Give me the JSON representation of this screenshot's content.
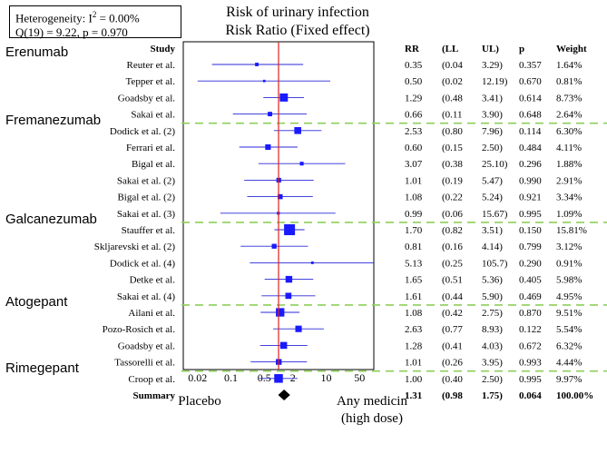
{
  "heterogeneity": {
    "line1_prefix": "Heterogeneity: I",
    "line1_sup": "2",
    "line1_suffix": " = 0.00%",
    "line2": "Q(19) = 9.22,  p = 0.970"
  },
  "footer": {
    "left": "Placebo",
    "right_line1": "Any medicin",
    "right_line2": "(high dose)"
  },
  "colors": {
    "marker": "#1a1aff",
    "ci_line": "#2a2ad8",
    "reference_line": "#e02020",
    "separator": "#8ecf5a",
    "summary": "#000000"
  },
  "chart_data": {
    "type": "forest",
    "title": "Risk of urinary infection",
    "subtitle": "Risk Ratio (Fixed effect)",
    "x_scale": "log",
    "xlim": [
      0.01,
      100
    ],
    "x_ticks": [
      {
        "value": 0.02,
        "label": "0.02"
      },
      {
        "value": 0.1,
        "label": "0.1"
      },
      {
        "value": 0.5,
        "label": "0.5"
      },
      {
        "value": 1,
        "label": "1"
      },
      {
        "value": 2,
        "label": "2"
      },
      {
        "value": 10,
        "label": "10"
      },
      {
        "value": 50,
        "label": "50"
      }
    ],
    "reference_value": 1,
    "column_headers": {
      "study": "Study",
      "rr": "RR",
      "ll": "(LL",
      "ul": "UL)",
      "p": "p",
      "weight": "Weight"
    },
    "groups": [
      "Erenumab",
      "Fremanezumab",
      "Galcanezumab",
      "Atogepant",
      "Rimegepant"
    ],
    "rows": [
      {
        "group": "Erenumab",
        "study": "Reuter et al.",
        "rr": 0.35,
        "ll": 0.04,
        "ul": 3.29,
        "rr_text": "0.35",
        "ll_text": "(0.04",
        "ul_text": "3.29)",
        "p_text": "0.357",
        "weight_text": "1.64%",
        "weight": 1.64
      },
      {
        "group": "Erenumab",
        "study": "Tepper et al.",
        "rr": 0.5,
        "ll": 0.02,
        "ul": 12.19,
        "rr_text": "0.50",
        "ll_text": "(0.02",
        "ul_text": "12.19)",
        "p_text": "0.670",
        "weight_text": "0.81%",
        "weight": 0.81
      },
      {
        "group": "Erenumab",
        "study": "Goadsby et al.",
        "rr": 1.29,
        "ll": 0.48,
        "ul": 3.41,
        "rr_text": "1.29",
        "ll_text": "(0.48",
        "ul_text": "3.41)",
        "p_text": "0.614",
        "weight_text": "8.73%",
        "weight": 8.73
      },
      {
        "group": "Erenumab",
        "study": "Sakai et al.",
        "rr": 0.66,
        "ll": 0.11,
        "ul": 3.9,
        "rr_text": "0.66",
        "ll_text": "(0.11",
        "ul_text": "3.90)",
        "p_text": "0.648",
        "weight_text": "2.64%",
        "weight": 2.64
      },
      {
        "group": "Fremanezumab",
        "study": "Dodick et al. (2)",
        "rr": 2.53,
        "ll": 0.8,
        "ul": 7.96,
        "rr_text": "2.53",
        "ll_text": "(0.80",
        "ul_text": "7.96)",
        "p_text": "0.114",
        "weight_text": "6.30%",
        "weight": 6.3
      },
      {
        "group": "Fremanezumab",
        "study": "Ferrari et al.",
        "rr": 0.6,
        "ll": 0.15,
        "ul": 2.5,
        "rr_text": "0.60",
        "ll_text": "(0.15",
        "ul_text": "2.50)",
        "p_text": "0.484",
        "weight_text": "4.11%",
        "weight": 4.11
      },
      {
        "group": "Fremanezumab",
        "study": "Bigal et al.",
        "rr": 3.07,
        "ll": 0.38,
        "ul": 25.1,
        "rr_text": "3.07",
        "ll_text": "(0.38",
        "ul_text": "25.10)",
        "p_text": "0.296",
        "weight_text": "1.88%",
        "weight": 1.88
      },
      {
        "group": "Fremanezumab",
        "study": "Sakai et al. (2)",
        "rr": 1.01,
        "ll": 0.19,
        "ul": 5.47,
        "rr_text": "1.01",
        "ll_text": "(0.19",
        "ul_text": "5.47)",
        "p_text": "0.990",
        "weight_text": "2.91%",
        "weight": 2.91
      },
      {
        "group": "Fremanezumab",
        "study": "Bigal et al. (2)",
        "rr": 1.08,
        "ll": 0.22,
        "ul": 5.24,
        "rr_text": "1.08",
        "ll_text": "(0.22",
        "ul_text": "5.24)",
        "p_text": "0.921",
        "weight_text": "3.34%",
        "weight": 3.34
      },
      {
        "group": "Fremanezumab",
        "study": "Sakai et al. (3)",
        "rr": 0.99,
        "ll": 0.06,
        "ul": 15.67,
        "rr_text": "0.99",
        "ll_text": "(0.06",
        "ul_text": "15.67)",
        "p_text": "0.995",
        "weight_text": "1.09%",
        "weight": 1.09
      },
      {
        "group": "Galcanezumab",
        "study": "Stauffer et al.",
        "rr": 1.7,
        "ll": 0.82,
        "ul": 3.51,
        "rr_text": "1.70",
        "ll_text": "(0.82",
        "ul_text": "3.51)",
        "p_text": "0.150",
        "weight_text": "15.81%",
        "weight": 15.81
      },
      {
        "group": "Galcanezumab",
        "study": "Skljarevski et al. (2)",
        "rr": 0.81,
        "ll": 0.16,
        "ul": 4.14,
        "rr_text": "0.81",
        "ll_text": "(0.16",
        "ul_text": "4.14)",
        "p_text": "0.799",
        "weight_text": "3.12%",
        "weight": 3.12
      },
      {
        "group": "Galcanezumab",
        "study": "Dodick et al. (4)",
        "rr": 5.13,
        "ll": 0.25,
        "ul": 105.7,
        "rr_text": "5.13",
        "ll_text": "(0.25",
        "ul_text": "105.7)",
        "p_text": "0.290",
        "weight_text": "0.91%",
        "weight": 0.91
      },
      {
        "group": "Galcanezumab",
        "study": "Detke et al.",
        "rr": 1.65,
        "ll": 0.51,
        "ul": 5.36,
        "rr_text": "1.65",
        "ll_text": "(0.51",
        "ul_text": "5.36)",
        "p_text": "0.405",
        "weight_text": "5.98%",
        "weight": 5.98
      },
      {
        "group": "Galcanezumab",
        "study": "Sakai et al. (4)",
        "rr": 1.61,
        "ll": 0.44,
        "ul": 5.9,
        "rr_text": "1.61",
        "ll_text": "(0.44",
        "ul_text": "5.90)",
        "p_text": "0.469",
        "weight_text": "4.95%",
        "weight": 4.95
      },
      {
        "group": "Atogepant",
        "study": "Ailani et al.",
        "rr": 1.08,
        "ll": 0.42,
        "ul": 2.75,
        "rr_text": "1.08",
        "ll_text": "(0.42",
        "ul_text": "2.75)",
        "p_text": "0.870",
        "weight_text": "9.51%",
        "weight": 9.51
      },
      {
        "group": "Atogepant",
        "study": "Pozo-Rosich et al.",
        "rr": 2.63,
        "ll": 0.77,
        "ul": 8.93,
        "rr_text": "2.63",
        "ll_text": "(0.77",
        "ul_text": "8.93)",
        "p_text": "0.122",
        "weight_text": "5.54%",
        "weight": 5.54
      },
      {
        "group": "Atogepant",
        "study": "Goadsby et al.",
        "rr": 1.28,
        "ll": 0.41,
        "ul": 4.03,
        "rr_text": "1.28",
        "ll_text": "(0.41",
        "ul_text": "4.03)",
        "p_text": "0.672",
        "weight_text": "6.32%",
        "weight": 6.32
      },
      {
        "group": "Atogepant",
        "study": "Tassorelli et al.",
        "rr": 1.01,
        "ll": 0.26,
        "ul": 3.95,
        "rr_text": "1.01",
        "ll_text": "(0.26",
        "ul_text": "3.95)",
        "p_text": "0.993",
        "weight_text": "4.44%",
        "weight": 4.44
      },
      {
        "group": "Rimegepant",
        "study": "Croop et al.",
        "rr": 1.0,
        "ll": 0.4,
        "ul": 2.5,
        "rr_text": "1.00",
        "ll_text": "(0.40",
        "ul_text": "2.50)",
        "p_text": "0.995",
        "weight_text": "9.97%",
        "weight": 9.97
      }
    ],
    "summary": {
      "study": "Summary",
      "rr": 1.31,
      "ll": 0.98,
      "ul": 1.75,
      "rr_text": "1.31",
      "ll_text": "(0.98",
      "ul_text": "1.75)",
      "p_text": "0.064",
      "weight_text": "100.00%"
    }
  }
}
